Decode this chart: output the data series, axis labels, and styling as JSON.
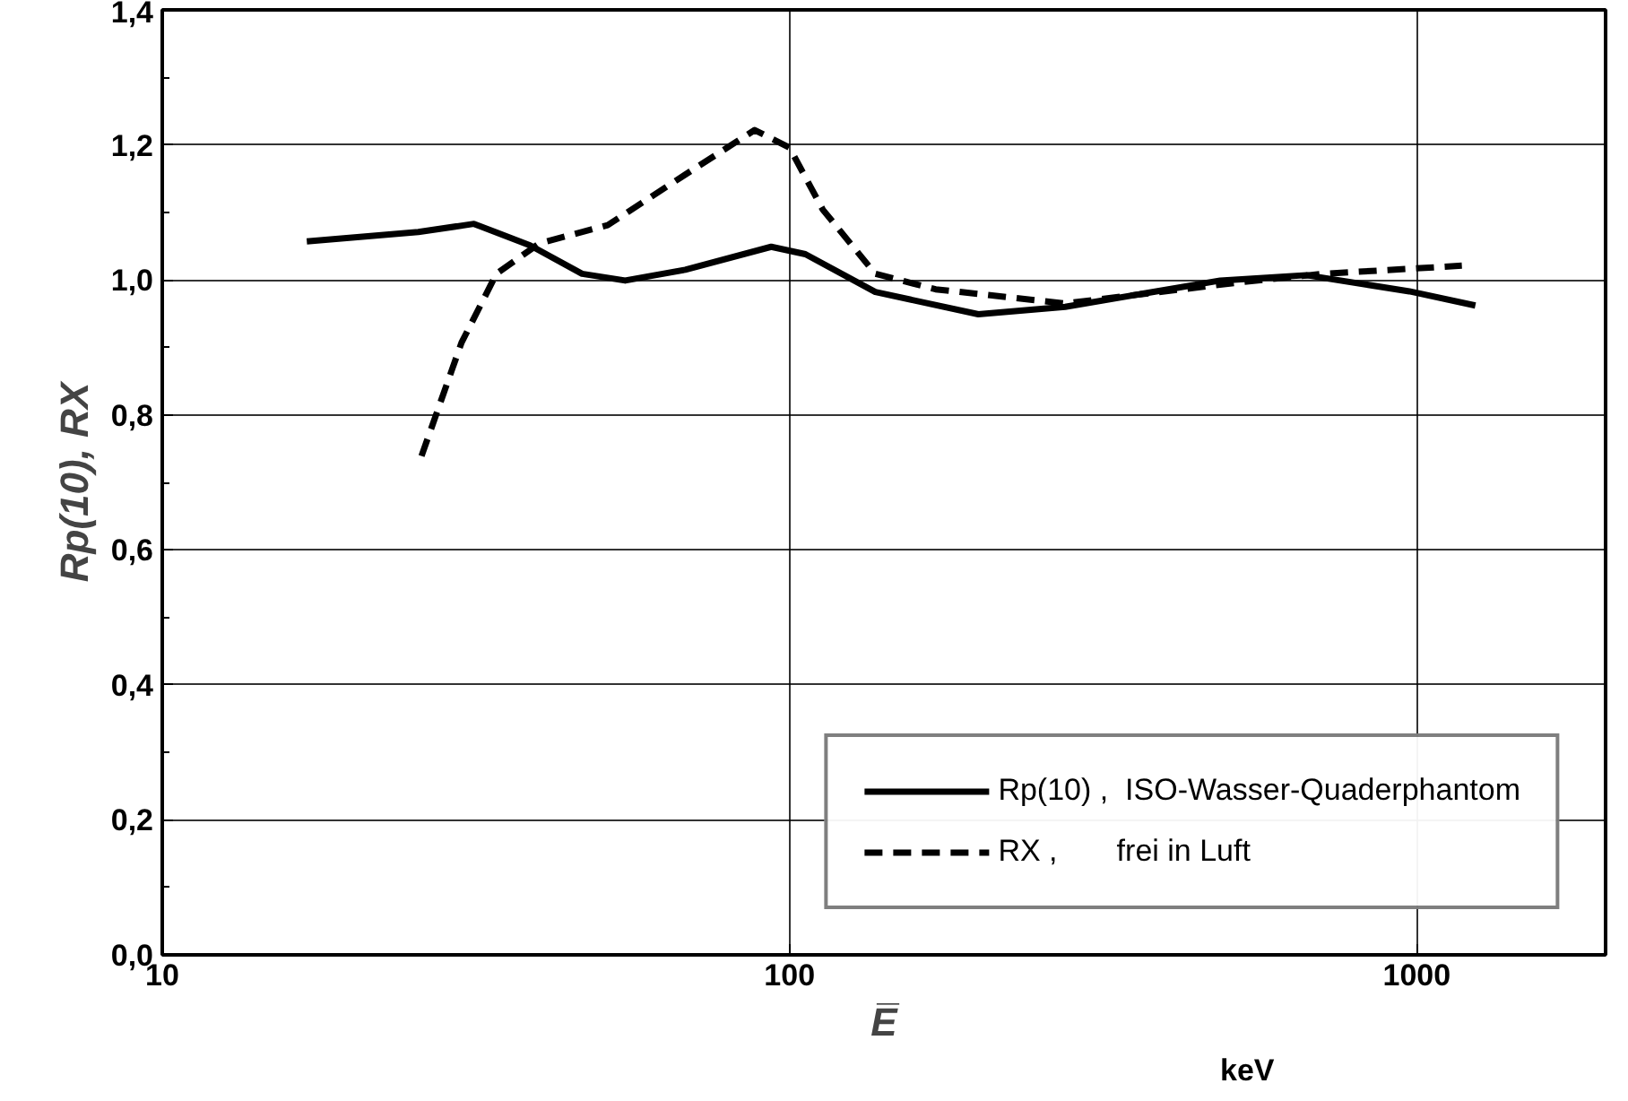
{
  "chart_data": {
    "type": "line",
    "xlabel": "E̅",
    "ylabel": "Rp(10), RX",
    "annotations": [
      "keV"
    ],
    "log": "x",
    "xlim": [
      10,
      2000
    ],
    "xticks": [
      10,
      100,
      1000
    ],
    "ylim": [
      0,
      1.4
    ],
    "yticks": [
      {
        "value": 0,
        "label": "0,0"
      },
      {
        "value": 0.2,
        "label": "0,2"
      },
      {
        "value": 0.4,
        "label": "0,4"
      },
      {
        "value": 0.6,
        "label": "0,6"
      },
      {
        "value": 0.8,
        "label": "0,8"
      },
      {
        "value": 1.0,
        "label": "1,0"
      },
      {
        "value": 1.2,
        "label": "1,2"
      },
      {
        "value": 1.4,
        "label": "1,4"
      }
    ],
    "grid": true,
    "legend": "bottom right",
    "series": [
      {
        "name": "Rp(10) ,  ISO-Wasser-Quaderphantom",
        "color": "#000000",
        "line_style": "solid",
        "x": [
          17,
          25.6,
          31.4,
          38.6,
          46.7,
          54.7,
          68.2,
          93.5,
          106,
          137,
          200,
          275,
          486,
          667,
          973,
          1240
        ],
        "values": [
          1.057,
          1.071,
          1.083,
          1.051,
          1.009,
          0.999,
          1.015,
          1.049,
          1.038,
          0.982,
          0.949,
          0.96,
          0.999,
          1.007,
          0.983,
          0.962
        ]
      },
      {
        "name": "RX ,       frei in Luft",
        "color": "#000000",
        "line_style": "dashed",
        "x": [
          25.9,
          30,
          34.1,
          39.9,
          51.3,
          68.2,
          88,
          100,
          113,
          137,
          171,
          275,
          518,
          710,
          1180
        ],
        "values": [
          0.739,
          0.907,
          1.009,
          1.054,
          1.081,
          1.156,
          1.222,
          1.196,
          1.104,
          1.009,
          0.986,
          0.965,
          0.996,
          1.009,
          1.021
        ]
      }
    ]
  }
}
